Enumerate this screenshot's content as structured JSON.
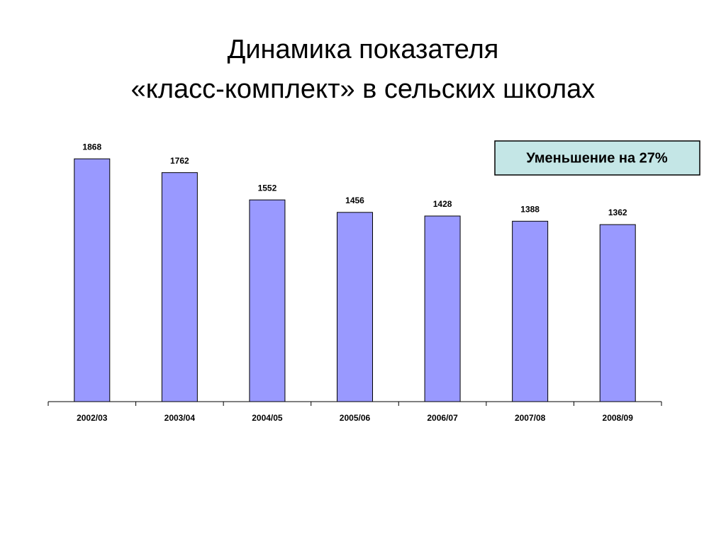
{
  "chart_data": {
    "type": "bar",
    "title": [
      "Динамика показателя",
      "«класс-комплект» в сельских школах"
    ],
    "annotation": "Уменьшение на 27%",
    "categories": [
      "2002/03",
      "2003/04",
      "2004/05",
      "2005/06",
      "2006/07",
      "2007/08",
      "2008/09"
    ],
    "values": [
      1868,
      1762,
      1552,
      1456,
      1428,
      1388,
      1362
    ],
    "color": "#9999ff",
    "ylim": [
      0,
      2000
    ]
  }
}
